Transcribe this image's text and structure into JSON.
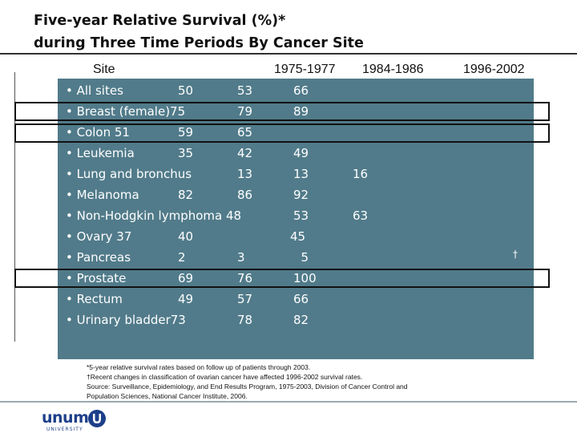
{
  "title": {
    "line1": "Five-year Relative Survival (%)*",
    "line2": "during Three Time Periods By Cancer Site"
  },
  "headers": {
    "site": "Site",
    "p1": "1975-1977",
    "p2": "1984-1986",
    "p3": "1996-2002"
  },
  "rows": [
    {
      "c1": "• All sites",
      "c2": "50",
      "c3": "53",
      "c4": "66",
      "c5": ""
    },
    {
      "c1": "• Breast (female)75",
      "c2": "",
      "c3": "79",
      "c4": "89",
      "c5": ""
    },
    {
      "c1": "• Colon  51",
      "c2": "59",
      "c3": "65",
      "c4": "",
      "c5": ""
    },
    {
      "c1": "• Leukemia",
      "c2": "35",
      "c3": "42",
      "c4": "49",
      "c5": ""
    },
    {
      "c1": "• Lung and bronchus",
      "c2": "",
      "c3": "13",
      "c4": "13",
      "c5": "16"
    },
    {
      "c1": "• Melanoma",
      "c2": "82",
      "c3": "86",
      "c4": "92",
      "c5": ""
    },
    {
      "c1": "• Non-Hodgkin lymphoma 48",
      "c2": "",
      "c3": "",
      "c4": "53",
      "c5": "63"
    },
    {
      "c1": "• Ovary 37",
      "c2": "40",
      "c3": "",
      "c4": "45",
      "c5": ""
    },
    {
      "c1": "• Pancreas",
      "c2": "2",
      "c3": "3",
      "c4": "  5",
      "c5": ""
    },
    {
      "c1": "• Prostate",
      "c2": "69",
      "c3": "76",
      "c4": "100",
      "c5": ""
    },
    {
      "c1": "• Rectum",
      "c2": "49",
      "c3": "57",
      "c4": "66",
      "c5": ""
    },
    {
      "c1": "• Urinary bladder73",
      "c2": "",
      "c3": "78",
      "c4": "82",
      "c5": ""
    }
  ],
  "dagger": "†",
  "footnote": {
    "l1": "*5-year relative survival rates based on follow up of patients through 2003.",
    "l2": "†Recent changes in classification of ovarian cancer have affected 1996-2002 survival rates.",
    "l3": "Source: Surveillance, Epidemiology, and End Results Program, 1975-2003, Division of Cancer Control and",
    "l4": "Population Sciences, National Cancer Institute, 2006."
  },
  "logo": {
    "name": "unum",
    "sub": "UNIVERSITY",
    "brand_color": "#1d3f8a"
  },
  "colors": {
    "panel": "#517b8a",
    "text_on_panel": "#ffffff"
  }
}
